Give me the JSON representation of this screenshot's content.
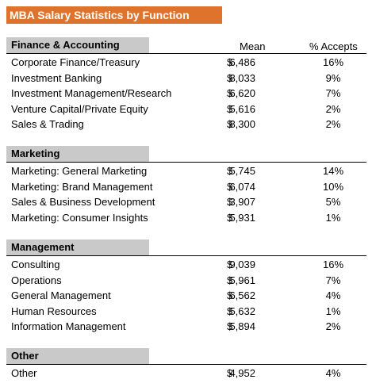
{
  "title": "MBA Salary Statistics by Function",
  "columns": {
    "mean": "Mean",
    "accepts": "% Accepts"
  },
  "currency": "$",
  "sections": [
    {
      "name": "Finance & Accounting",
      "rows": [
        {
          "label": "Corporate Finance/Treasury",
          "mean": "6,486",
          "accepts": "16%"
        },
        {
          "label": "Investment Banking",
          "mean": "8,033",
          "accepts": "9%"
        },
        {
          "label": "Investment Management/Research",
          "mean": "6,620",
          "accepts": "7%"
        },
        {
          "label": "Venture Capital/Private Equity",
          "mean": "5,616",
          "accepts": "2%"
        },
        {
          "label": "Sales & Trading",
          "mean": "8,300",
          "accepts": "2%"
        }
      ]
    },
    {
      "name": "Marketing",
      "rows": [
        {
          "label": "Marketing: General Marketing",
          "mean": "5,745",
          "accepts": "14%"
        },
        {
          "label": "Marketing: Brand Management",
          "mean": "6,074",
          "accepts": "10%"
        },
        {
          "label": "Sales & Business Development",
          "mean": "3,907",
          "accepts": "5%"
        },
        {
          "label": "Marketing: Consumer Insights",
          "mean": "5,931",
          "accepts": "1%"
        }
      ]
    },
    {
      "name": "Management",
      "rows": [
        {
          "label": "Consulting",
          "mean": "9,039",
          "accepts": "16%"
        },
        {
          "label": "Operations",
          "mean": "5,961",
          "accepts": "7%"
        },
        {
          "label": "General Management",
          "mean": "6,562",
          "accepts": "4%"
        },
        {
          "label": "Human Resources",
          "mean": "5,632",
          "accepts": "1%"
        },
        {
          "label": "Information Management",
          "mean": "5,894",
          "accepts": "2%"
        }
      ]
    },
    {
      "name": "Other",
      "rows": [
        {
          "label": "Other",
          "mean": "4,952",
          "accepts": "4%"
        }
      ]
    }
  ]
}
